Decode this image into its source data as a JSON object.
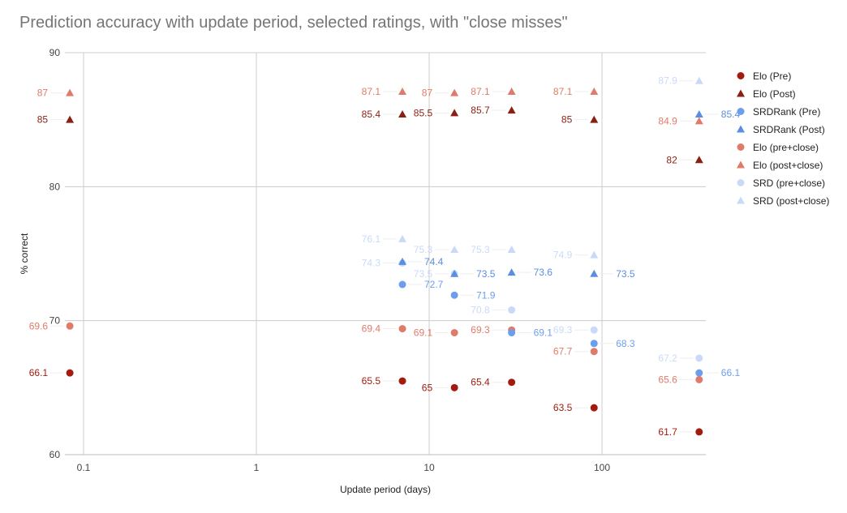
{
  "chart_data": {
    "type": "scatter",
    "title": "Prediction accuracy with update period, selected ratings, with \"close misses\"",
    "xlabel": "Update period (days)",
    "ylabel": "% correct",
    "xscale": "log",
    "xlim": [
      0.08,
      365
    ],
    "ylim": [
      60,
      90
    ],
    "x_ticks": [
      {
        "value": 0.1,
        "label": "0.1"
      },
      {
        "value": 1,
        "label": "1"
      },
      {
        "value": 10,
        "label": "10"
      },
      {
        "value": 100,
        "label": "100"
      }
    ],
    "y_ticks": [
      {
        "value": 60,
        "label": "60"
      },
      {
        "value": 70,
        "label": "70"
      },
      {
        "value": 80,
        "label": "80"
      },
      {
        "value": 90,
        "label": "90"
      }
    ],
    "grid": true,
    "legend_position": "right",
    "series": [
      {
        "name": "Elo (Pre)",
        "marker": "circle",
        "color": "#a31b0e",
        "label_side": "left",
        "points": [
          {
            "x": 0.0833,
            "y": 66.1,
            "label": "66.1"
          },
          {
            "x": 7,
            "y": 65.5,
            "label": "65.5"
          },
          {
            "x": 14,
            "y": 65,
            "label": "65"
          },
          {
            "x": 30,
            "y": 65.4,
            "label": "65.4"
          },
          {
            "x": 90,
            "y": 63.5,
            "label": "63.5"
          },
          {
            "x": 365,
            "y": 61.7,
            "label": "61.7"
          }
        ]
      },
      {
        "name": "Elo (Post)",
        "marker": "triangle",
        "color": "#8b1f14",
        "label_side": "left",
        "points": [
          {
            "x": 0.0833,
            "y": 85,
            "label": "85"
          },
          {
            "x": 7,
            "y": 85.4,
            "label": "85.4"
          },
          {
            "x": 14,
            "y": 85.5,
            "label": "85.5"
          },
          {
            "x": 30,
            "y": 85.7,
            "label": "85.7"
          },
          {
            "x": 90,
            "y": 85,
            "label": "85"
          },
          {
            "x": 365,
            "y": 82,
            "label": "82"
          }
        ]
      },
      {
        "name": "SRDRank (Pre)",
        "marker": "circle",
        "color": "#6d9eeb",
        "label_side": "right",
        "points": [
          {
            "x": 7,
            "y": 72.7,
            "label": "72.7"
          },
          {
            "x": 14,
            "y": 71.9,
            "label": "71.9"
          },
          {
            "x": 30,
            "y": 69.1,
            "label": "69.1"
          },
          {
            "x": 90,
            "y": 68.3,
            "label": "68.3"
          },
          {
            "x": 365,
            "y": 66.1,
            "label": "66.1"
          }
        ]
      },
      {
        "name": "SRDRank (Post)",
        "marker": "triangle",
        "color": "#5b8ee0",
        "label_side": "right",
        "points": [
          {
            "x": 7,
            "y": 74.4,
            "label": "74.4"
          },
          {
            "x": 14,
            "y": 73.5,
            "label": "73.5"
          },
          {
            "x": 30,
            "y": 73.6,
            "label": "73.6"
          },
          {
            "x": 90,
            "y": 73.5,
            "label": "73.5"
          },
          {
            "x": 365,
            "y": 85.4,
            "label": "85.4"
          }
        ]
      },
      {
        "name": "Elo (pre+close)",
        "marker": "circle",
        "color": "#e07b6a",
        "label_side": "left",
        "points": [
          {
            "x": 0.0833,
            "y": 69.6,
            "label": "69.6"
          },
          {
            "x": 7,
            "y": 69.4,
            "label": "69.4"
          },
          {
            "x": 14,
            "y": 69.1,
            "label": "69.1"
          },
          {
            "x": 30,
            "y": 69.3,
            "label": "69.3"
          },
          {
            "x": 90,
            "y": 67.7,
            "label": "67.7"
          },
          {
            "x": 365,
            "y": 65.6,
            "label": "65.6"
          }
        ]
      },
      {
        "name": "Elo (post+close)",
        "marker": "triangle",
        "color": "#e07b6a",
        "label_side": "left",
        "points": [
          {
            "x": 0.0833,
            "y": 87,
            "label": "87"
          },
          {
            "x": 7,
            "y": 87.1,
            "label": "87.1"
          },
          {
            "x": 14,
            "y": 87,
            "label": "87"
          },
          {
            "x": 30,
            "y": 87.1,
            "label": "87.1"
          },
          {
            "x": 90,
            "y": 87.1,
            "label": "87.1"
          },
          {
            "x": 365,
            "y": 84.9,
            "label": "84.9"
          }
        ]
      },
      {
        "name": "SRD (pre+close)",
        "marker": "circle",
        "color": "#c9daf8",
        "label_side": "left",
        "points": [
          {
            "x": 7,
            "y": 74.3,
            "label": "74.3"
          },
          {
            "x": 14,
            "y": 73.5,
            "label": "73.5"
          },
          {
            "x": 30,
            "y": 70.8,
            "label": "70.8"
          },
          {
            "x": 90,
            "y": 69.3,
            "label": "69.3"
          },
          {
            "x": 365,
            "y": 67.2,
            "label": "67.2"
          }
        ]
      },
      {
        "name": "SRD (post+close)",
        "marker": "triangle",
        "color": "#c9daf8",
        "label_side": "left",
        "points": [
          {
            "x": 7,
            "y": 76.1,
            "label": "76.1"
          },
          {
            "x": 14,
            "y": 75.3,
            "label": "75.3"
          },
          {
            "x": 30,
            "y": 75.3,
            "label": "75.3"
          },
          {
            "x": 90,
            "y": 74.9,
            "label": "74.9"
          },
          {
            "x": 365,
            "y": 87.9,
            "label": "87.9"
          }
        ]
      }
    ]
  }
}
